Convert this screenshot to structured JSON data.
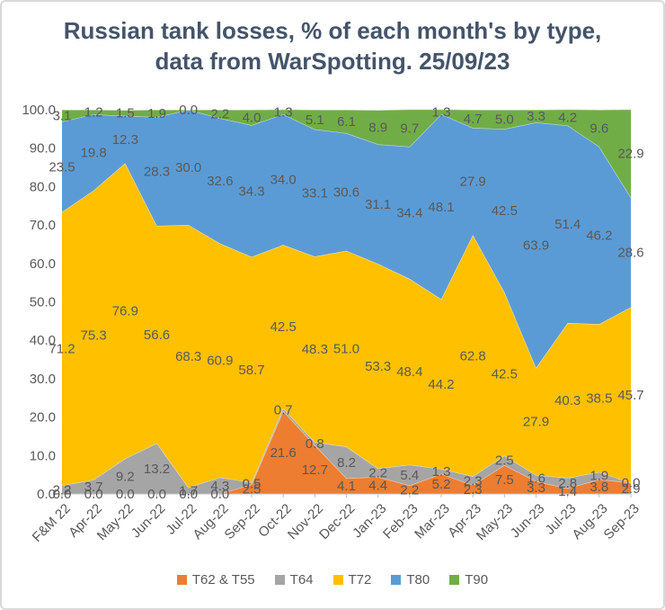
{
  "chart_data": {
    "type": "area",
    "stacking": "percent",
    "title": "Russian tank losses, % of each month's by type, data from WarSpotting. 25/09/23",
    "xlabel": "",
    "ylabel": "",
    "ylim": [
      0,
      100
    ],
    "y_ticks": [
      "100.0",
      "90.0",
      "80.0",
      "70.0",
      "60.0",
      "50.0",
      "40.0",
      "30.0",
      "20.0",
      "10.0",
      "0.0"
    ],
    "grid": false,
    "data_labels": true,
    "legend_position": "bottom",
    "categories": [
      "F&M 22",
      "Apr-22",
      "May-22",
      "Jun-22",
      "Jul-22",
      "Aug-22",
      "Sep-22",
      "Oct-22",
      "Nov-22",
      "Dec-22",
      "Jan-23",
      "Feb-23",
      "Mar-23",
      "Apr-23",
      "May-23",
      "Jun-23",
      "Jul-23",
      "Aug-23",
      "Sep-23"
    ],
    "series": [
      {
        "name": "T62 & T55",
        "color": "#ED7D31",
        "values": [
          0.0,
          0.0,
          0.0,
          0.0,
          0.0,
          0.0,
          2.5,
          21.6,
          12.7,
          4.1,
          4.4,
          2.2,
          5.2,
          2.3,
          7.5,
          3.3,
          1.4,
          3.8,
          2.9
        ]
      },
      {
        "name": "T64",
        "color": "#A5A5A5",
        "values": [
          2.2,
          3.7,
          9.2,
          13.2,
          1.7,
          4.3,
          0.5,
          0.7,
          0.8,
          8.2,
          2.2,
          5.4,
          1.3,
          2.3,
          2.5,
          1.6,
          2.8,
          1.9,
          0.0
        ]
      },
      {
        "name": "T72",
        "color": "#FFC000",
        "values": [
          71.2,
          75.3,
          76.9,
          56.6,
          68.3,
          60.9,
          58.7,
          42.5,
          48.3,
          51.0,
          53.3,
          48.4,
          44.2,
          62.8,
          42.5,
          27.9,
          40.3,
          38.5,
          45.7
        ]
      },
      {
        "name": "T80",
        "color": "#5B9BD5",
        "values": [
          23.5,
          19.8,
          12.3,
          28.3,
          30.0,
          32.6,
          34.3,
          34.0,
          33.1,
          30.6,
          31.1,
          34.4,
          48.1,
          27.9,
          42.5,
          63.9,
          51.4,
          46.2,
          28.6
        ]
      },
      {
        "name": "T90",
        "color": "#70AD47",
        "values": [
          3.1,
          1.2,
          1.5,
          1.9,
          0.0,
          2.2,
          4.0,
          1.3,
          5.1,
          6.1,
          8.9,
          9.7,
          1.3,
          4.7,
          5.0,
          3.3,
          4.2,
          9.6,
          22.9
        ]
      }
    ],
    "colors": {
      "title_text": "#44546A",
      "label_text": "#595959",
      "axis_line": "#BFBFBF",
      "band_edge": "#FFFFFF"
    }
  }
}
